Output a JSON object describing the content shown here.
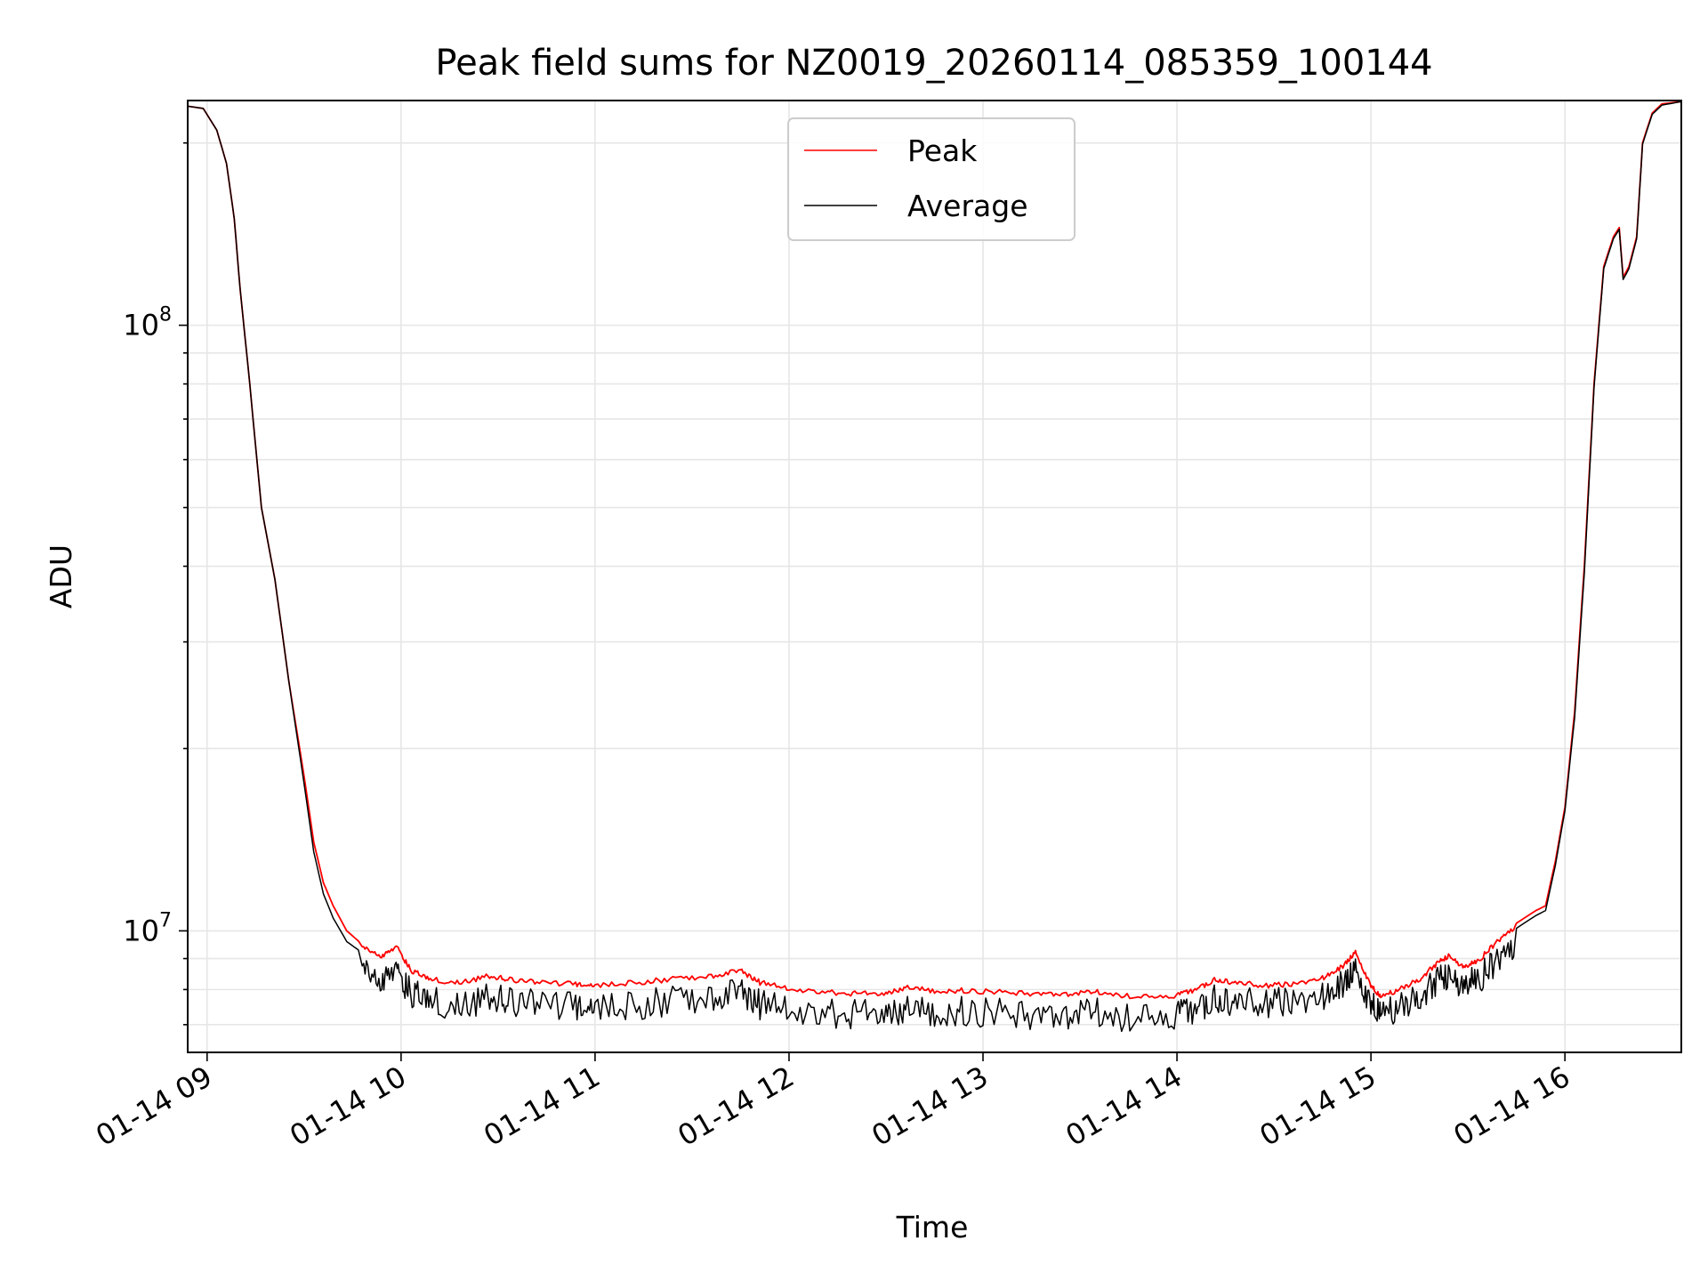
{
  "chart_data": {
    "type": "line",
    "title": "Peak field sums for NZ0019_20260114_085359_100144",
    "xlabel": "Time",
    "ylabel": "ADU",
    "yscale": "log",
    "ylim": [
      6300000,
      235000000
    ],
    "xlim_hours": [
      8.9,
      16.6
    ],
    "grid": true,
    "legend_position": "upper-center",
    "x_ticks": [
      {
        "hour": 9,
        "label": "01-14 09"
      },
      {
        "hour": 10,
        "label": "01-14 10"
      },
      {
        "hour": 11,
        "label": "01-14 11"
      },
      {
        "hour": 12,
        "label": "01-14 12"
      },
      {
        "hour": 13,
        "label": "01-14 13"
      },
      {
        "hour": 14,
        "label": "01-14 14"
      },
      {
        "hour": 15,
        "label": "01-14 15"
      },
      {
        "hour": 16,
        "label": "01-14 16"
      }
    ],
    "y_ticks": [
      {
        "value": 10000000,
        "base": "10",
        "exp": "7"
      },
      {
        "value": 100000000,
        "base": "10",
        "exp": "8"
      }
    ],
    "series": [
      {
        "name": "Peak",
        "color": "#ff0000",
        "points": [
          [
            8.9,
            230000000
          ],
          [
            8.98,
            228000000
          ],
          [
            9.05,
            210000000
          ],
          [
            9.1,
            185000000
          ],
          [
            9.14,
            150000000
          ],
          [
            9.17,
            115000000
          ],
          [
            9.22,
            80000000
          ],
          [
            9.28,
            50000000
          ],
          [
            9.35,
            38000000
          ],
          [
            9.42,
            26000000
          ],
          [
            9.5,
            18000000
          ],
          [
            9.55,
            14000000
          ],
          [
            9.6,
            12000000
          ],
          [
            9.65,
            11000000
          ],
          [
            9.72,
            10000000
          ],
          [
            9.8,
            9500000
          ],
          [
            9.9,
            9200000
          ],
          [
            9.98,
            9500000
          ],
          [
            10.05,
            8700000
          ],
          [
            10.15,
            8400000
          ],
          [
            10.3,
            8300000
          ],
          [
            10.45,
            8500000
          ],
          [
            10.55,
            8400000
          ],
          [
            10.7,
            8300000
          ],
          [
            10.9,
            8250000
          ],
          [
            11.0,
            8200000
          ],
          [
            11.2,
            8300000
          ],
          [
            11.4,
            8400000
          ],
          [
            11.6,
            8500000
          ],
          [
            11.75,
            8700000
          ],
          [
            11.85,
            8300000
          ],
          [
            12.0,
            8100000
          ],
          [
            12.2,
            8000000
          ],
          [
            12.35,
            7950000
          ],
          [
            12.5,
            7950000
          ],
          [
            12.6,
            8150000
          ],
          [
            12.75,
            8050000
          ],
          [
            12.9,
            8050000
          ],
          [
            13.1,
            8000000
          ],
          [
            13.3,
            7950000
          ],
          [
            13.45,
            7950000
          ],
          [
            13.6,
            8000000
          ],
          [
            13.8,
            7850000
          ],
          [
            14.0,
            7900000
          ],
          [
            14.1,
            8100000
          ],
          [
            14.2,
            8400000
          ],
          [
            14.3,
            8300000
          ],
          [
            14.45,
            8200000
          ],
          [
            14.6,
            8250000
          ],
          [
            14.75,
            8450000
          ],
          [
            14.85,
            8800000
          ],
          [
            14.92,
            9300000
          ],
          [
            15.0,
            8200000
          ],
          [
            15.05,
            7850000
          ],
          [
            15.15,
            8100000
          ],
          [
            15.25,
            8400000
          ],
          [
            15.32,
            8800000
          ],
          [
            15.4,
            9200000
          ],
          [
            15.48,
            8800000
          ],
          [
            15.55,
            9000000
          ],
          [
            15.65,
            9700000
          ],
          [
            15.75,
            10300000
          ],
          [
            15.85,
            10800000
          ],
          [
            15.9,
            11000000
          ],
          [
            15.95,
            13000000
          ],
          [
            16.0,
            16000000
          ],
          [
            16.05,
            23000000
          ],
          [
            16.1,
            40000000
          ],
          [
            16.15,
            80000000
          ],
          [
            16.2,
            125000000
          ],
          [
            16.25,
            140000000
          ],
          [
            16.28,
            145000000
          ],
          [
            16.3,
            120000000
          ],
          [
            16.33,
            125000000
          ],
          [
            16.37,
            140000000
          ],
          [
            16.4,
            200000000
          ],
          [
            16.45,
            224000000
          ],
          [
            16.5,
            232000000
          ],
          [
            16.6,
            234000000
          ]
        ]
      },
      {
        "name": "Average",
        "color": "#000000",
        "points": [
          [
            8.9,
            230000000
          ],
          [
            8.98,
            228000000
          ],
          [
            9.05,
            210000000
          ],
          [
            9.1,
            185000000
          ],
          [
            9.14,
            150000000
          ],
          [
            9.17,
            115000000
          ],
          [
            9.22,
            80000000
          ],
          [
            9.28,
            50000000
          ],
          [
            9.35,
            38000000
          ],
          [
            9.42,
            26000000
          ],
          [
            9.5,
            17500000
          ],
          [
            9.55,
            13500000
          ],
          [
            9.6,
            11500000
          ],
          [
            9.65,
            10500000
          ],
          [
            9.72,
            9600000
          ],
          [
            9.8,
            9200000
          ],
          [
            9.9,
            8900000
          ],
          [
            9.98,
            9100000
          ],
          [
            10.05,
            8400000
          ],
          [
            10.15,
            8100000
          ],
          [
            10.3,
            8000000
          ],
          [
            10.45,
            8200000
          ],
          [
            10.55,
            8100000
          ],
          [
            10.7,
            8000000
          ],
          [
            10.9,
            7950000
          ],
          [
            11.0,
            7900000
          ],
          [
            11.2,
            8000000
          ],
          [
            11.4,
            8100000
          ],
          [
            11.6,
            8200000
          ],
          [
            11.75,
            8500000
          ],
          [
            11.85,
            8000000
          ],
          [
            12.0,
            7850000
          ],
          [
            12.2,
            7750000
          ],
          [
            12.35,
            7700000
          ],
          [
            12.5,
            7700000
          ],
          [
            12.6,
            7900000
          ],
          [
            12.75,
            7800000
          ],
          [
            12.9,
            7800000
          ],
          [
            13.1,
            7750000
          ],
          [
            13.3,
            7700000
          ],
          [
            13.45,
            7700000
          ],
          [
            13.6,
            7750000
          ],
          [
            13.8,
            7600000
          ],
          [
            14.0,
            7700000
          ],
          [
            14.1,
            7900000
          ],
          [
            14.2,
            8200000
          ],
          [
            14.3,
            8100000
          ],
          [
            14.45,
            8050000
          ],
          [
            14.6,
            8100000
          ],
          [
            14.75,
            8300000
          ],
          [
            14.85,
            8600000
          ],
          [
            14.92,
            9100000
          ],
          [
            15.0,
            8000000
          ],
          [
            15.05,
            7700000
          ],
          [
            15.15,
            7950000
          ],
          [
            15.25,
            8250000
          ],
          [
            15.32,
            8600000
          ],
          [
            15.4,
            9000000
          ],
          [
            15.48,
            8600000
          ],
          [
            15.55,
            8800000
          ],
          [
            15.65,
            9500000
          ],
          [
            15.75,
            10100000
          ],
          [
            15.85,
            10600000
          ],
          [
            15.9,
            10800000
          ],
          [
            15.95,
            12800000
          ],
          [
            16.0,
            15800000
          ],
          [
            16.05,
            22500000
          ],
          [
            16.1,
            39000000
          ],
          [
            16.15,
            79000000
          ],
          [
            16.2,
            124000000
          ],
          [
            16.25,
            139000000
          ],
          [
            16.28,
            144000000
          ],
          [
            16.3,
            119000000
          ],
          [
            16.33,
            124000000
          ],
          [
            16.37,
            139000000
          ],
          [
            16.4,
            199000000
          ],
          [
            16.45,
            223000000
          ],
          [
            16.5,
            231000000
          ],
          [
            16.6,
            234000000
          ]
        ]
      }
    ]
  }
}
